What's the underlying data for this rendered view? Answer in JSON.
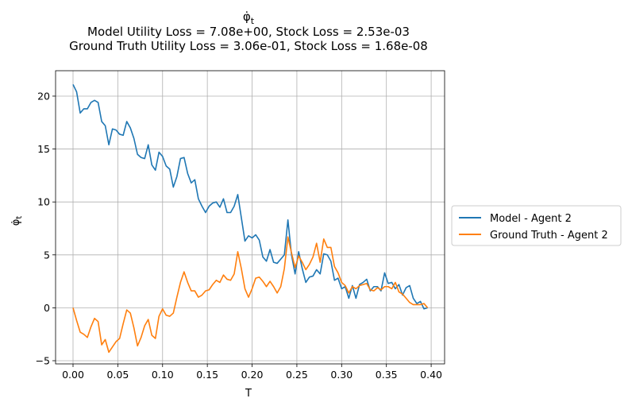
{
  "chart_data": {
    "type": "line",
    "title": "φ̇_t",
    "title_lines": [
      "φ̇",
      "Model Utility Loss = 7.08e+00, Stock Loss = 2.53e-03",
      "Ground Truth Utility Loss = 3.06e-01, Stock Loss = 1.68e-08"
    ],
    "xlabel": "T",
    "ylabel": "φ̇",
    "xlim": [
      -0.0195,
      0.415
    ],
    "ylim": [
      -5.3,
      22.4
    ],
    "xticks": [
      0.0,
      0.05,
      0.1,
      0.15,
      0.2,
      0.25,
      0.3,
      0.35,
      0.4
    ],
    "xtick_labels": [
      "0.00",
      "0.05",
      "0.10",
      "0.15",
      "0.20",
      "0.25",
      "0.30",
      "0.35",
      "0.40"
    ],
    "yticks": [
      -5,
      0,
      5,
      10,
      15,
      20
    ],
    "ytick_labels": [
      "−5",
      "0",
      "5",
      "10",
      "15",
      "20"
    ],
    "grid": true,
    "legend_position": "outside-right",
    "series": [
      {
        "name": "Model - Agent 2",
        "color": "#1f77b4",
        "x": [
          0.0,
          0.004,
          0.008,
          0.012,
          0.016,
          0.02,
          0.024,
          0.028,
          0.032,
          0.036,
          0.04,
          0.044,
          0.048,
          0.052,
          0.056,
          0.06,
          0.064,
          0.068,
          0.072,
          0.076,
          0.08,
          0.084,
          0.088,
          0.092,
          0.096,
          0.1,
          0.104,
          0.108,
          0.112,
          0.116,
          0.12,
          0.124,
          0.128,
          0.132,
          0.136,
          0.14,
          0.144,
          0.148,
          0.152,
          0.156,
          0.16,
          0.164,
          0.168,
          0.172,
          0.176,
          0.18,
          0.184,
          0.188,
          0.192,
          0.196,
          0.2,
          0.204,
          0.208,
          0.212,
          0.216,
          0.22,
          0.224,
          0.228,
          0.232,
          0.236,
          0.24,
          0.244,
          0.248,
          0.252,
          0.256,
          0.26,
          0.264,
          0.268,
          0.272,
          0.276,
          0.28,
          0.284,
          0.288,
          0.292,
          0.296,
          0.3,
          0.304,
          0.308,
          0.312,
          0.316,
          0.32,
          0.324,
          0.328,
          0.332,
          0.336,
          0.34,
          0.344,
          0.348,
          0.352,
          0.356,
          0.36,
          0.364,
          0.368,
          0.372,
          0.376,
          0.38,
          0.384,
          0.388,
          0.392,
          0.396
        ],
        "values": [
          21.1,
          20.4,
          18.4,
          18.8,
          18.8,
          19.4,
          19.6,
          19.4,
          17.6,
          17.2,
          15.4,
          16.9,
          16.8,
          16.4,
          16.3,
          17.6,
          17.0,
          16.0,
          14.5,
          14.2,
          14.1,
          15.4,
          13.5,
          13.0,
          14.7,
          14.3,
          13.4,
          13.1,
          11.4,
          12.4,
          14.1,
          14.2,
          12.7,
          11.8,
          12.1,
          10.3,
          9.6,
          9.0,
          9.6,
          9.9,
          10.0,
          9.5,
          10.3,
          9.0,
          9.0,
          9.6,
          10.7,
          8.5,
          6.3,
          6.8,
          6.6,
          6.9,
          6.4,
          4.8,
          4.4,
          5.5,
          4.3,
          4.2,
          4.6,
          5.0,
          8.3,
          5.0,
          3.2,
          5.3,
          3.7,
          2.4,
          2.9,
          3.0,
          3.6,
          3.2,
          5.1,
          5.0,
          4.4,
          2.6,
          2.8,
          1.8,
          2.0,
          0.9,
          2.1,
          0.9,
          2.2,
          2.4,
          2.7,
          1.6,
          2.0,
          2.0,
          1.6,
          3.3,
          2.3,
          2.4,
          1.8,
          2.2,
          1.2,
          1.9,
          2.1,
          0.9,
          0.4,
          0.6,
          -0.1,
          0.0
        ]
      },
      {
        "name": "Ground Truth - Agent 2",
        "color": "#ff7f0e",
        "x": [
          0.0,
          0.004,
          0.008,
          0.012,
          0.016,
          0.02,
          0.024,
          0.028,
          0.032,
          0.036,
          0.04,
          0.044,
          0.048,
          0.052,
          0.056,
          0.06,
          0.064,
          0.068,
          0.072,
          0.076,
          0.08,
          0.084,
          0.088,
          0.092,
          0.096,
          0.1,
          0.104,
          0.108,
          0.112,
          0.116,
          0.12,
          0.124,
          0.128,
          0.132,
          0.136,
          0.14,
          0.144,
          0.148,
          0.152,
          0.156,
          0.16,
          0.164,
          0.168,
          0.172,
          0.176,
          0.18,
          0.184,
          0.188,
          0.192,
          0.196,
          0.2,
          0.204,
          0.208,
          0.212,
          0.216,
          0.22,
          0.224,
          0.228,
          0.232,
          0.236,
          0.24,
          0.244,
          0.248,
          0.252,
          0.256,
          0.26,
          0.264,
          0.268,
          0.272,
          0.276,
          0.28,
          0.284,
          0.288,
          0.292,
          0.296,
          0.3,
          0.304,
          0.308,
          0.312,
          0.316,
          0.32,
          0.324,
          0.328,
          0.332,
          0.336,
          0.34,
          0.344,
          0.348,
          0.352,
          0.356,
          0.36,
          0.364,
          0.368,
          0.372,
          0.376,
          0.38,
          0.384,
          0.388,
          0.392,
          0.396
        ],
        "values": [
          0.0,
          -1.2,
          -2.3,
          -2.5,
          -2.8,
          -1.8,
          -1.0,
          -1.3,
          -3.5,
          -3.0,
          -4.2,
          -3.7,
          -3.2,
          -2.9,
          -1.5,
          -0.2,
          -0.5,
          -1.9,
          -3.6,
          -2.8,
          -1.7,
          -1.1,
          -2.6,
          -2.9,
          -0.8,
          -0.1,
          -0.7,
          -0.8,
          -0.5,
          1.0,
          2.4,
          3.4,
          2.4,
          1.6,
          1.6,
          1.0,
          1.2,
          1.6,
          1.7,
          2.2,
          2.6,
          2.4,
          3.1,
          2.7,
          2.6,
          3.2,
          5.3,
          3.7,
          1.8,
          1.0,
          1.8,
          2.8,
          2.9,
          2.5,
          2.0,
          2.5,
          2.0,
          1.4,
          2.0,
          3.7,
          6.7,
          5.2,
          3.8,
          4.9,
          4.3,
          3.6,
          4.1,
          4.8,
          6.1,
          4.3,
          6.5,
          5.7,
          5.7,
          3.9,
          3.3,
          2.4,
          2.1,
          1.4,
          2.0,
          1.8,
          2.1,
          2.2,
          2.3,
          1.7,
          1.6,
          1.9,
          1.7,
          2.0,
          2.0,
          1.8,
          2.4,
          1.5,
          1.3,
          0.9,
          0.5,
          0.3,
          0.3,
          0.3,
          0.4,
          0.0
        ]
      }
    ]
  }
}
